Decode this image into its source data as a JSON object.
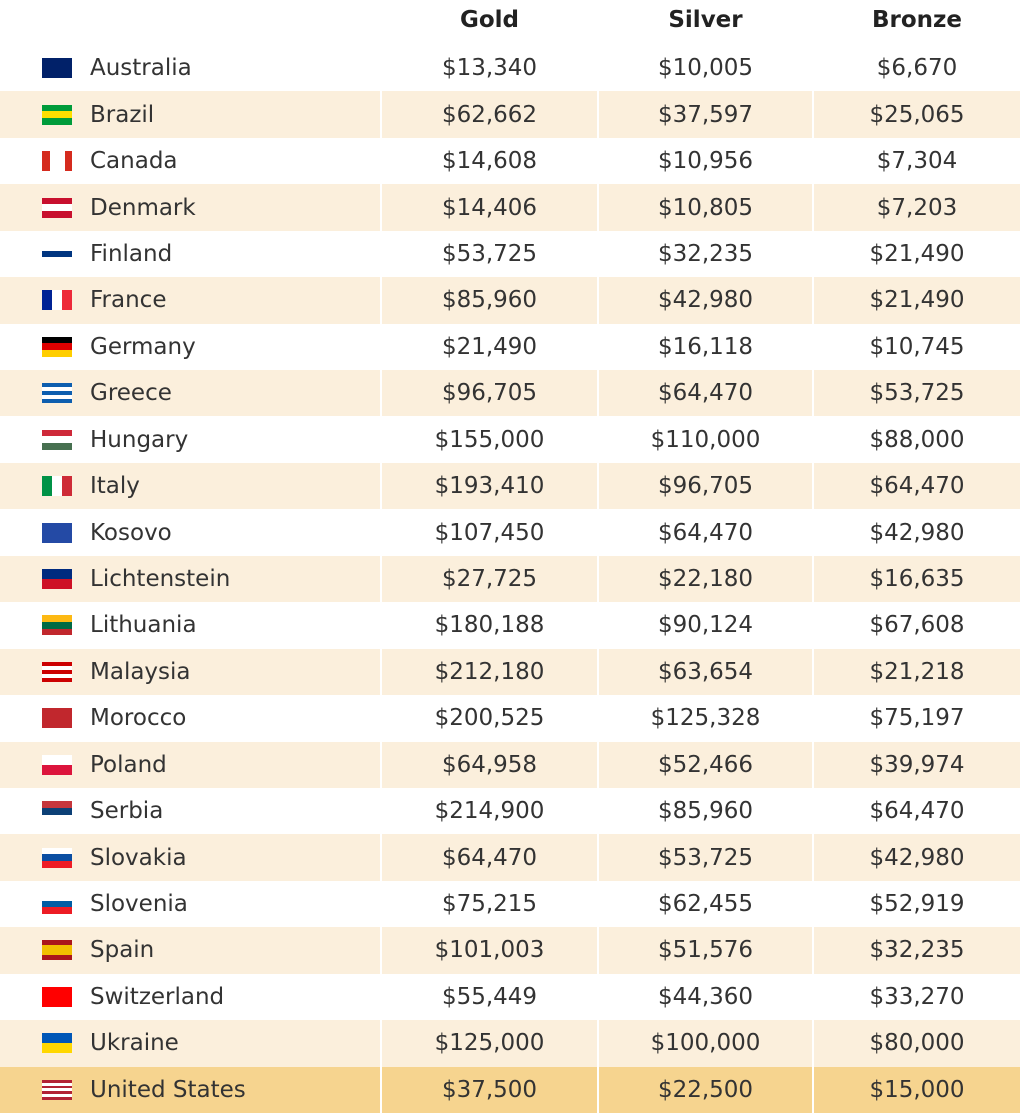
{
  "header": [
    "Gold",
    "Silver",
    "Bronze"
  ],
  "rows": [
    [
      "Australia",
      "$13,340",
      "$10,005",
      "$6,670"
    ],
    [
      "Brazil",
      "$62,662",
      "$37,597",
      "$25,065"
    ],
    [
      "Canada",
      "$14,608",
      "$10,956",
      "$7,304"
    ],
    [
      "Denmark",
      "$14,406",
      "$10,805",
      "$7,203"
    ],
    [
      "Finland",
      "$53,725",
      "$32,235",
      "$21,490"
    ],
    [
      "France",
      "$85,960",
      "$42,980",
      "$21,490"
    ],
    [
      "Germany",
      "$21,490",
      "$16,118",
      "$10,745"
    ],
    [
      "Greece",
      "$96,705",
      "$64,470",
      "$53,725"
    ],
    [
      "Hungary",
      "$155,000",
      "$110,000",
      "$88,000"
    ],
    [
      "Italy",
      "$193,410",
      "$96,705",
      "$64,470"
    ],
    [
      "Kosovo",
      "$107,450",
      "$64,470",
      "$42,980"
    ],
    [
      "Lichtenstein",
      "$27,725",
      "$22,180",
      "$16,635"
    ],
    [
      "Lithuania",
      "$180,188",
      "$90,124",
      "$67,608"
    ],
    [
      "Malaysia",
      "$212,180",
      "$63,654",
      "$21,218"
    ],
    [
      "Morocco",
      "$200,525",
      "$125,328",
      "$75,197"
    ],
    [
      "Poland",
      "$64,958",
      "$52,466",
      "$39,974"
    ],
    [
      "Serbia",
      "$214,900",
      "$85,960",
      "$64,470"
    ],
    [
      "Slovakia",
      "$64,470",
      "$53,725",
      "$42,980"
    ],
    [
      "Slovenia",
      "$75,215",
      "$62,455",
      "$52,919"
    ],
    [
      "Spain",
      "$101,003",
      "$51,576",
      "$32,235"
    ],
    [
      "Switzerland",
      "$55,449",
      "$44,360",
      "$33,270"
    ],
    [
      "Ukraine",
      "$125,000",
      "$100,000",
      "$80,000"
    ],
    [
      "United States",
      "$37,500",
      "$22,500",
      "$15,000"
    ]
  ]
}
